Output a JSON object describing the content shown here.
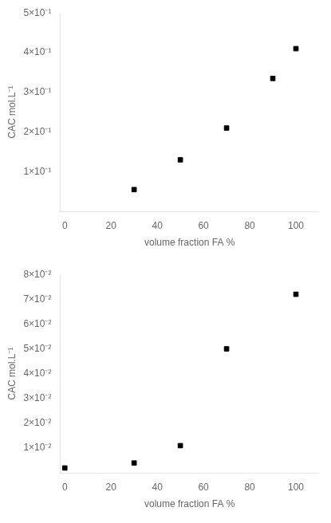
{
  "chart_data": [
    {
      "type": "scatter",
      "x": [
        30,
        50,
        70,
        90,
        100
      ],
      "values": [
        0.055,
        0.13,
        0.21,
        0.335,
        0.41
      ],
      "xlabel": "volume fraction FA %",
      "ylabel": "CAC mol.L⁻¹",
      "xlim": [
        -2,
        110
      ],
      "ylim": [
        0,
        0.5
      ],
      "xticks": [
        0,
        20,
        40,
        60,
        80,
        100
      ],
      "yticks": [
        {
          "value": 0.1,
          "label": "1×10⁻¹"
        },
        {
          "value": 0.2,
          "label": "2×10⁻¹"
        },
        {
          "value": 0.3,
          "label": "3×10⁻¹"
        },
        {
          "value": 0.4,
          "label": "4×10⁻¹"
        },
        {
          "value": 0.5,
          "label": "5×10⁻¹"
        }
      ],
      "color": "black",
      "marker": "square",
      "grid": false
    },
    {
      "type": "scatter",
      "x": [
        0,
        30,
        50,
        70,
        100
      ],
      "values": [
        0.002,
        0.004,
        0.011,
        0.05,
        0.072
      ],
      "xlabel": "volume fraction FA %",
      "ylabel": "CAC mol.L⁻¹",
      "xlim": [
        -2,
        110
      ],
      "ylim": [
        0,
        0.08
      ],
      "xticks": [
        0,
        20,
        40,
        60,
        80,
        100
      ],
      "yticks": [
        {
          "value": 0.01,
          "label": "1×10⁻²"
        },
        {
          "value": 0.02,
          "label": "2×10⁻²"
        },
        {
          "value": 0.03,
          "label": "3×10⁻²"
        },
        {
          "value": 0.04,
          "label": "4×10⁻²"
        },
        {
          "value": 0.05,
          "label": "5×10⁻²"
        },
        {
          "value": 0.06,
          "label": "6×10⁻²"
        },
        {
          "value": 0.07,
          "label": "7×10⁻²"
        },
        {
          "value": 0.08,
          "label": "8×10⁻²"
        }
      ],
      "color": "black",
      "marker": "square",
      "grid": false
    }
  ]
}
